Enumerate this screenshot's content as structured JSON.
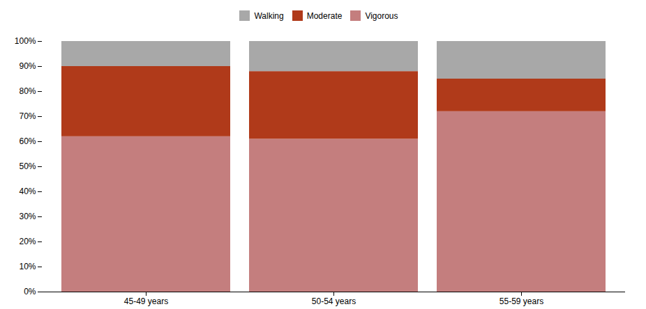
{
  "chart_data": {
    "type": "bar",
    "stacked": true,
    "legend": "top",
    "categories": [
      "45-49 years",
      "50-54 years",
      "55-59 years"
    ],
    "series": [
      {
        "name": "Vigorous",
        "color": "#c47e7e",
        "values": [
          62,
          61,
          72
        ]
      },
      {
        "name": "Moderate",
        "color": "#b03a1a",
        "values": [
          28,
          27,
          13
        ]
      },
      {
        "name": "Walking",
        "color": "#a8a8a8",
        "values": [
          10,
          12,
          15
        ]
      }
    ],
    "ylim": [
      0,
      100
    ],
    "yticks": [
      {
        "value": 0,
        "label": "0%"
      },
      {
        "value": 10,
        "label": "10%"
      },
      {
        "value": 20,
        "label": "20%"
      },
      {
        "value": 30,
        "label": "30%"
      },
      {
        "value": 40,
        "label": "40%"
      },
      {
        "value": 50,
        "label": "50%"
      },
      {
        "value": 60,
        "label": "60%"
      },
      {
        "value": 70,
        "label": "70%"
      },
      {
        "value": 80,
        "label": "80%"
      },
      {
        "value": 90,
        "label": "90%"
      },
      {
        "value": 100,
        "label": "100%"
      }
    ]
  }
}
